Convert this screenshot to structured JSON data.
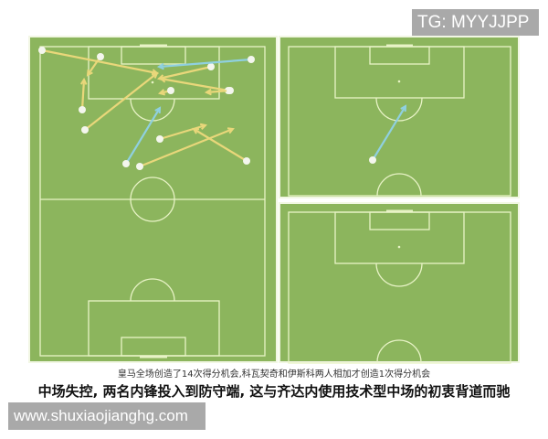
{
  "watermark_top": "TG: MYYJJPP",
  "caption": "皇马全场创造了14次得分机会,科瓦契奇和伊斯科两人相加才创造1次得分机会",
  "headline": "中场失控, 两名内锋投入到防守端, 这与齐达内使用技术型中场的初衷背道而驰",
  "watermark_site": "www.shuxiaojianghg.com",
  "colors": {
    "pitch": "#8cb55d",
    "lines": "#e8f3c6",
    "pass": "#e9d77a",
    "key_pass": "#8fd0e0",
    "border": "#f2f7e4"
  }
}
